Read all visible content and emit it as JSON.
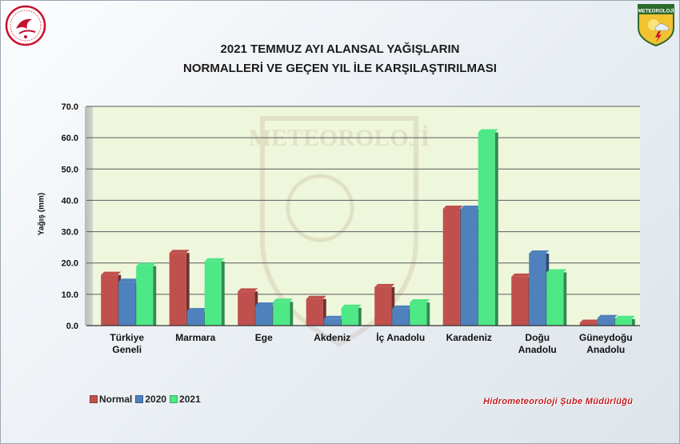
{
  "header": {
    "title_line1": "2021 TEMMUZ AYI ALANSAL YAĞIŞLARIN",
    "title_line2": "NORMALLERİ VE GEÇEN YIL İLE KARŞILAŞTIRILMASI",
    "logo_right_text": "METEOROLOJİ",
    "watermark_text": "METEOROLOJİ"
  },
  "footer": {
    "credit": "Hidrometeoroloji Şube Müdürlüğü"
  },
  "colors": {
    "plot_bg": "#eef7dc",
    "wall": "#c9cbc6",
    "normal": "#c0504d",
    "y2020": "#4f81bd",
    "y2021": "#4ee886",
    "credit": "#c0181c"
  },
  "chart_data": {
    "type": "bar",
    "title": "2021 TEMMUZ AYI ALANSAL YAĞIŞLARIN NORMALLERİ VE GEÇEN YIL İLE KARŞILAŞTIRILMASI",
    "xlabel": "",
    "ylabel": "Yağış (mm)",
    "ylim": [
      0,
      70
    ],
    "ytick_step": 10,
    "ytick_labels": [
      "0.0",
      "10.0",
      "20.0",
      "30.0",
      "40.0",
      "50.0",
      "60.0",
      "70.0"
    ],
    "grid": true,
    "legend_position": "bottom-left",
    "categories": [
      [
        "Türkiye",
        "Geneli"
      ],
      [
        "Marmara"
      ],
      [
        "Ege"
      ],
      [
        "Akdeniz"
      ],
      [
        "İç Anadolu"
      ],
      [
        "Karadeniz"
      ],
      [
        "Doğu",
        "Anadolu"
      ],
      [
        "Güneydoğu",
        "Anadolu"
      ]
    ],
    "series": [
      {
        "name": "Normal",
        "color": "#c0504d",
        "values": [
          16.2,
          23.2,
          10.9,
          8.5,
          12.3,
          37.3,
          15.6,
          0.9
        ]
      },
      {
        "name": "2020",
        "color": "#4f81bd",
        "values": [
          14.0,
          4.6,
          6.4,
          2.1,
          5.4,
          37.3,
          23.0,
          2.4
        ]
      },
      {
        "name": "2021",
        "color": "#4ee886",
        "values": [
          19.0,
          20.5,
          7.6,
          5.7,
          7.4,
          61.7,
          17.0,
          2.1
        ]
      }
    ]
  }
}
